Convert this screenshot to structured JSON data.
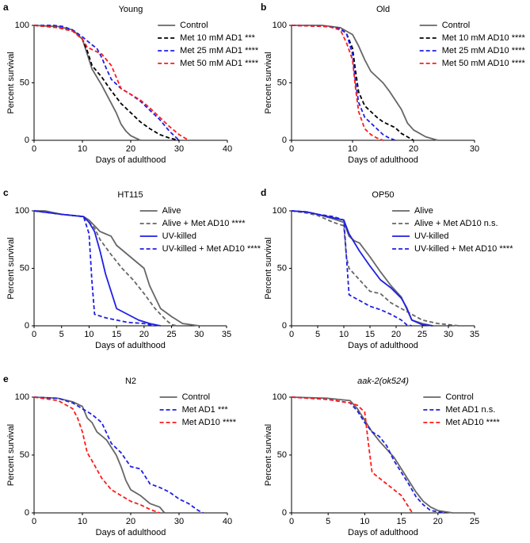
{
  "chart_data": [
    {
      "type": "line",
      "panel": "a",
      "title": "Young",
      "xlabel": "Days of adulthood",
      "ylabel": "Percent survival",
      "xlim": [
        0,
        40
      ],
      "xticks": [
        0,
        10,
        20,
        30,
        40
      ],
      "ylim": [
        0,
        100
      ],
      "yticks": [
        0,
        50,
        100
      ],
      "series": [
        {
          "name": "Control",
          "color": "#666666",
          "dashed": false,
          "x": [
            0,
            5,
            8,
            10,
            11,
            12,
            14,
            16,
            17,
            18,
            19,
            20,
            22
          ],
          "values": [
            100,
            99,
            96,
            88,
            75,
            62,
            48,
            32,
            24,
            14,
            8,
            4,
            0
          ]
        },
        {
          "name": "Met 10 mM AD1 ***",
          "color": "#000000",
          "dashed": true,
          "x": [
            0,
            5,
            8,
            10,
            11,
            12,
            14,
            16,
            18,
            20,
            22,
            24,
            26,
            28,
            30
          ],
          "values": [
            100,
            98,
            95,
            88,
            78,
            65,
            55,
            43,
            32,
            24,
            16,
            10,
            5,
            2,
            0
          ]
        },
        {
          "name": "Met 25 mM AD1 ****",
          "color": "#1f1fe6",
          "dashed": true,
          "x": [
            0,
            4,
            6,
            8,
            10,
            12,
            13,
            14,
            15,
            16,
            18,
            20,
            22,
            24,
            26,
            28,
            30
          ],
          "values": [
            100,
            100,
            99,
            96,
            90,
            83,
            80,
            72,
            62,
            53,
            45,
            40,
            34,
            26,
            18,
            8,
            0
          ]
        },
        {
          "name": "Met 50 mM AD1 ****",
          "color": "#ff1a1a",
          "dashed": true,
          "x": [
            0,
            5,
            8,
            10,
            11,
            12,
            14,
            16,
            17,
            18,
            20,
            22,
            24,
            26,
            28,
            30,
            32
          ],
          "values": [
            100,
            98,
            95,
            88,
            81,
            79,
            75,
            65,
            55,
            45,
            40,
            35,
            28,
            20,
            12,
            5,
            0
          ]
        }
      ]
    },
    {
      "type": "line",
      "panel": "b",
      "title": "Old",
      "xlabel": "Days of adulthood",
      "ylabel": "Percent survival",
      "xlim": [
        0,
        30
      ],
      "xticks": [
        0,
        10,
        20,
        30
      ],
      "ylim": [
        0,
        100
      ],
      "yticks": [
        0,
        50,
        100
      ],
      "series": [
        {
          "name": "Control",
          "color": "#666666",
          "dashed": false,
          "x": [
            0,
            5,
            8,
            10,
            11,
            12,
            13,
            15,
            16,
            17,
            18,
            19,
            20,
            22,
            24
          ],
          "values": [
            100,
            100,
            98,
            92,
            82,
            70,
            60,
            50,
            43,
            35,
            27,
            15,
            9,
            3,
            0
          ]
        },
        {
          "name": "Met 10 mM AD10 ****",
          "color": "#000000",
          "dashed": true,
          "x": [
            0,
            6,
            8,
            9,
            10,
            10.5,
            11,
            12,
            13,
            14,
            15,
            17,
            18,
            19,
            20
          ],
          "values": [
            100,
            99,
            97,
            93,
            80,
            60,
            42,
            30,
            25,
            20,
            16,
            11,
            6,
            3,
            0
          ]
        },
        {
          "name": "Met 25 mM AD10 ****",
          "color": "#1f1fe6",
          "dashed": true,
          "x": [
            0,
            6,
            8,
            9,
            10,
            10.5,
            11,
            12,
            13,
            14,
            15,
            16,
            17
          ],
          "values": [
            100,
            99,
            97,
            93,
            75,
            50,
            33,
            20,
            15,
            10,
            5,
            2,
            0
          ]
        },
        {
          "name": "Met 50 mM AD10 ****",
          "color": "#ff1a1a",
          "dashed": true,
          "x": [
            0,
            6,
            8,
            9,
            10,
            10.5,
            11,
            12,
            13,
            14,
            15
          ],
          "values": [
            100,
            99,
            96,
            85,
            70,
            45,
            25,
            10,
            5,
            2,
            0
          ]
        }
      ]
    },
    {
      "type": "line",
      "panel": "c",
      "title": "HT115",
      "xlabel": "Days of adulthood",
      "ylabel": "Percent survival",
      "xlim": [
        0,
        35
      ],
      "xticks": [
        0,
        5,
        10,
        15,
        20,
        25,
        30,
        35
      ],
      "ylim": [
        0,
        100
      ],
      "yticks": [
        0,
        50,
        100
      ],
      "series": [
        {
          "name": "Alive",
          "color": "#666666",
          "dashed": false,
          "x": [
            0,
            2,
            5,
            9,
            10,
            11,
            12,
            14,
            15,
            20,
            21,
            22,
            23,
            25,
            27,
            30
          ],
          "values": [
            100,
            100,
            97,
            95,
            92,
            87,
            82,
            78,
            70,
            50,
            35,
            25,
            15,
            8,
            2,
            0
          ]
        },
        {
          "name": "Alive + Met AD10 ****",
          "color": "#666666",
          "dashed": true,
          "x": [
            0,
            5,
            9,
            10,
            11,
            12,
            14,
            16,
            18,
            20,
            22,
            24,
            25,
            26
          ],
          "values": [
            100,
            97,
            95,
            90,
            85,
            75,
            62,
            50,
            40,
            28,
            15,
            5,
            1,
            0
          ]
        },
        {
          "name": "UV-killed",
          "color": "#1f1fe6",
          "dashed": false,
          "x": [
            0,
            5,
            9,
            10,
            11,
            12,
            13,
            14,
            15,
            17,
            19,
            21,
            23
          ],
          "values": [
            100,
            97,
            95,
            90,
            82,
            65,
            45,
            30,
            15,
            10,
            5,
            2,
            0
          ]
        },
        {
          "name": "UV-killed + Met AD10 ****",
          "color": "#1f1fe6",
          "dashed": true,
          "x": [
            0,
            5,
            9,
            10,
            10.5,
            11,
            13,
            15,
            17,
            20,
            22
          ],
          "values": [
            100,
            97,
            95,
            80,
            40,
            10,
            7,
            5,
            3,
            2,
            0
          ]
        }
      ]
    },
    {
      "type": "line",
      "panel": "d",
      "title": "OP50",
      "xlabel": "Days of adulthood",
      "ylabel": "Percent survival",
      "xlim": [
        0,
        35
      ],
      "xticks": [
        0,
        5,
        10,
        15,
        20,
        25,
        30,
        35
      ],
      "ylim": [
        0,
        100
      ],
      "yticks": [
        0,
        50,
        100
      ],
      "series": [
        {
          "name": "Alive",
          "color": "#666666",
          "dashed": false,
          "x": [
            0,
            3,
            5,
            8,
            10,
            11,
            12,
            13,
            15,
            17,
            19,
            21,
            22,
            23,
            25,
            27
          ],
          "values": [
            100,
            99,
            97,
            93,
            90,
            78,
            74,
            72,
            60,
            47,
            35,
            25,
            15,
            5,
            2,
            0
          ]
        },
        {
          "name": "Alive + Met AD10 n.s.",
          "color": "#666666",
          "dashed": true,
          "x": [
            0,
            3,
            5,
            8,
            10,
            10.5,
            11,
            13,
            15,
            17,
            19,
            21,
            23,
            25,
            28,
            32
          ],
          "values": [
            100,
            98,
            96,
            90,
            87,
            60,
            50,
            40,
            30,
            28,
            20,
            15,
            10,
            5,
            2,
            0
          ]
        },
        {
          "name": "UV-killed",
          "color": "#1f1fe6",
          "dashed": false,
          "x": [
            0,
            3,
            5,
            8,
            10,
            11,
            13,
            15,
            17,
            19,
            21,
            22,
            23,
            25,
            27
          ],
          "values": [
            100,
            99,
            97,
            94,
            92,
            80,
            65,
            52,
            40,
            33,
            24,
            16,
            5,
            1,
            0
          ]
        },
        {
          "name": "UV-killed + Met AD10 ****",
          "color": "#1f1fe6",
          "dashed": true,
          "x": [
            0,
            3,
            5,
            8,
            10,
            10.5,
            11,
            13,
            15,
            17,
            19,
            21,
            22,
            23
          ],
          "values": [
            100,
            99,
            97,
            95,
            92,
            60,
            27,
            22,
            17,
            14,
            10,
            5,
            1,
            0
          ]
        }
      ]
    },
    {
      "type": "line",
      "panel": "e",
      "title": "N2",
      "xlabel": "Days of adulthood",
      "ylabel": "Percent survival",
      "xlim": [
        0,
        40
      ],
      "xticks": [
        0,
        10,
        20,
        30,
        40
      ],
      "ylim": [
        0,
        100
      ],
      "yticks": [
        0,
        50,
        100
      ],
      "series": [
        {
          "name": "Control",
          "color": "#666666",
          "dashed": false,
          "x": [
            0,
            5,
            8,
            10,
            11,
            12,
            13,
            15,
            17,
            18,
            19,
            20,
            22,
            24,
            26,
            27
          ],
          "values": [
            100,
            99,
            96,
            92,
            82,
            78,
            70,
            63,
            50,
            40,
            28,
            20,
            15,
            8,
            5,
            0
          ]
        },
        {
          "name": "Met AD1 ***",
          "color": "#1f1fe6",
          "dashed": true,
          "x": [
            0,
            5,
            8,
            10,
            12,
            14,
            16,
            18,
            20,
            22,
            24,
            26,
            28,
            30,
            32,
            34,
            35
          ],
          "values": [
            100,
            99,
            95,
            90,
            85,
            78,
            60,
            52,
            40,
            38,
            25,
            22,
            18,
            12,
            8,
            2,
            0
          ]
        },
        {
          "name": "Met AD10 ****",
          "color": "#ff1a1a",
          "dashed": true,
          "x": [
            0,
            5,
            8,
            9,
            10,
            11,
            12,
            14,
            16,
            18,
            20,
            22,
            24,
            26
          ],
          "values": [
            100,
            97,
            90,
            82,
            70,
            52,
            45,
            30,
            20,
            15,
            10,
            7,
            3,
            0
          ]
        }
      ]
    },
    {
      "type": "line",
      "title": "aak-2(ok524)",
      "xlabel": "Days of adulthood",
      "ylabel": "Percent survival",
      "xlim": [
        0,
        25
      ],
      "xticks": [
        0,
        5,
        10,
        15,
        20,
        25
      ],
      "ylim": [
        0,
        100
      ],
      "yticks": [
        0,
        50,
        100
      ],
      "series": [
        {
          "name": "Control",
          "color": "#666666",
          "dashed": false,
          "x": [
            0,
            5,
            8,
            9,
            10,
            11,
            12,
            13,
            14,
            15,
            16,
            17,
            18,
            19,
            20,
            22
          ],
          "values": [
            100,
            99,
            97,
            90,
            80,
            70,
            62,
            55,
            48,
            38,
            28,
            18,
            10,
            5,
            2,
            0
          ]
        },
        {
          "name": "Met AD1 n.s.",
          "color": "#1f1fe6",
          "dashed": true,
          "x": [
            0,
            5,
            8,
            9,
            10,
            11,
            12,
            13,
            14,
            15,
            16,
            17,
            18,
            19,
            20,
            21
          ],
          "values": [
            100,
            98,
            95,
            88,
            78,
            70,
            66,
            58,
            45,
            35,
            25,
            14,
            7,
            2,
            1,
            0
          ]
        },
        {
          "name": "Met AD10 ****",
          "color": "#ff1a1a",
          "dashed": true,
          "x": [
            0,
            5,
            8,
            9,
            10,
            10.5,
            11,
            12,
            13,
            14,
            15,
            16,
            16.5
          ],
          "values": [
            100,
            98,
            95,
            93,
            87,
            60,
            35,
            30,
            25,
            20,
            15,
            5,
            0
          ]
        }
      ]
    }
  ]
}
